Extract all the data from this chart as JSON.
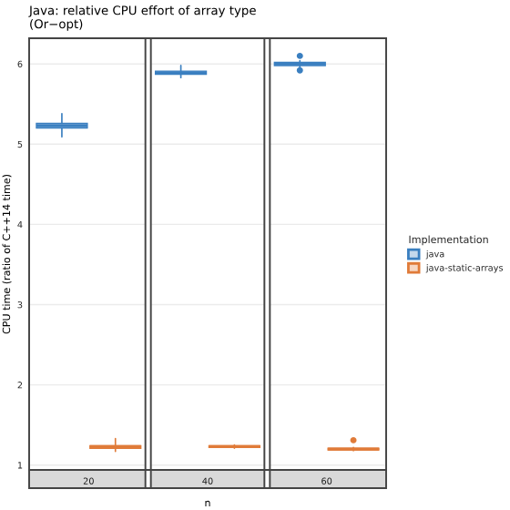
{
  "chart_data": {
    "type": "box",
    "title": "Java: relative CPU effort of array type\n(Or−opt)",
    "xlabel": "n",
    "ylabel": "CPU time (ratio of C++14 time)",
    "legend_title": "Implementation",
    "legend": "right",
    "categories": [
      "20",
      "40",
      "60"
    ],
    "ylim": [
      0.94,
      6.32
    ],
    "yticks": [
      1,
      2,
      3,
      4,
      5,
      6
    ],
    "grid": "y",
    "series": [
      {
        "name": "java",
        "color": "#3a7fc0",
        "boxes": [
          {
            "low": 5.09,
            "q1": 5.2,
            "median": 5.23,
            "q3": 5.26,
            "high": 5.38
          },
          {
            "low": 5.83,
            "q1": 5.87,
            "median": 5.89,
            "q3": 5.91,
            "high": 5.98
          },
          {
            "low": 5.95,
            "q1": 5.98,
            "median": 6.0,
            "q3": 6.02,
            "high": 6.04,
            "outliers": [
              6.1,
              5.92
            ]
          }
        ]
      },
      {
        "name": "java-static-arrays",
        "color": "#e07b39",
        "boxes": [
          {
            "low": 1.17,
            "q1": 1.21,
            "median": 1.23,
            "q3": 1.24,
            "high": 1.33
          },
          {
            "low": 1.21,
            "q1": 1.22,
            "median": 1.23,
            "q3": 1.24,
            "high": 1.25
          },
          {
            "low": 1.18,
            "q1": 1.19,
            "median": 1.2,
            "q3": 1.21,
            "high": 1.22,
            "outliers": [
              1.31
            ]
          }
        ]
      }
    ]
  }
}
